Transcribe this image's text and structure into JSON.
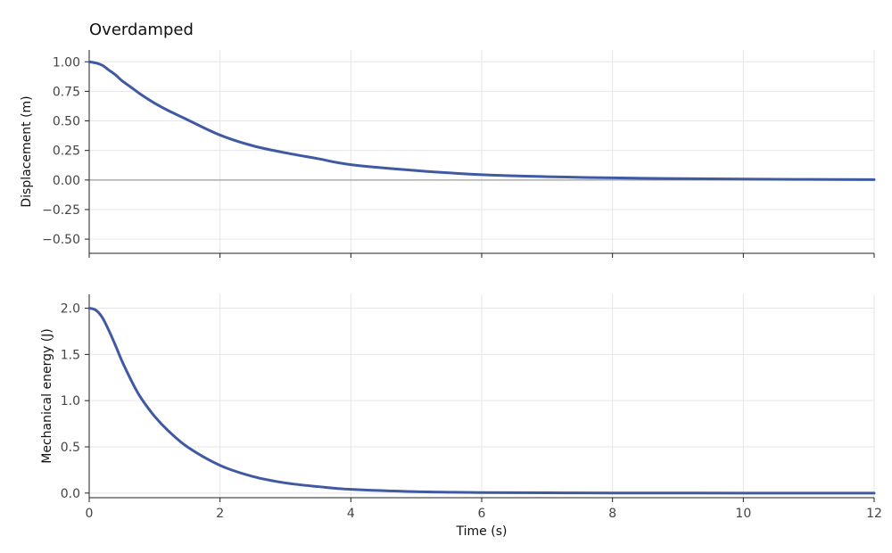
{
  "chart_data": {
    "type": "line",
    "title": "Overdamped",
    "xlabel": "Time (s)",
    "xlim": [
      0,
      12
    ],
    "x_ticks": [
      "0",
      "2",
      "4",
      "6",
      "8",
      "10",
      "12"
    ],
    "grid": true,
    "line_color": "#4059a3",
    "zero_line_color": "#888888",
    "panels": [
      {
        "ylabel": "Displacement (m)",
        "ylim": [
          -0.62,
          1.1
        ],
        "y_ticks": [
          "1.00",
          "0.75",
          "0.50",
          "0.25",
          "0.00",
          "−0.25",
          "−0.50"
        ],
        "series": [
          {
            "x": [
              0,
              0.1,
              0.2,
              0.3,
              0.4,
              0.5,
              0.6,
              0.7,
              0.8,
              1.0,
              1.2,
              1.5,
              2.0,
              2.5,
              3.0,
              3.5,
              4.0,
              5.0,
              6.0,
              7.0,
              8.0,
              9.0,
              10.0,
              11.0,
              12.0
            ],
            "y": [
              1.0,
              0.99,
              0.97,
              0.93,
              0.89,
              0.84,
              0.8,
              0.76,
              0.72,
              0.65,
              0.59,
              0.51,
              0.38,
              0.29,
              0.23,
              0.18,
              0.13,
              0.08,
              0.045,
              0.028,
              0.018,
              0.012,
              0.008,
              0.005,
              0.003
            ]
          }
        ]
      },
      {
        "ylabel": "Mechanical energy (J)",
        "ylim": [
          -0.05,
          2.15
        ],
        "y_ticks": [
          "2.0",
          "1.5",
          "1.0",
          "0.5",
          "0.0"
        ],
        "series": [
          {
            "x": [
              0,
              0.1,
              0.2,
              0.3,
              0.4,
              0.5,
              0.6,
              0.7,
              0.8,
              1.0,
              1.2,
              1.5,
              2.0,
              2.5,
              3.0,
              3.5,
              4.0,
              5.0,
              6.0,
              7.0,
              8.0,
              9.0,
              10.0,
              12.0
            ],
            "y": [
              2.0,
              1.98,
              1.9,
              1.76,
              1.6,
              1.43,
              1.28,
              1.14,
              1.02,
              0.83,
              0.68,
              0.5,
              0.3,
              0.18,
              0.11,
              0.07,
              0.04,
              0.015,
              0.006,
              0.003,
              0.001,
              0.0005,
              0.0,
              0.0
            ]
          }
        ]
      }
    ]
  }
}
